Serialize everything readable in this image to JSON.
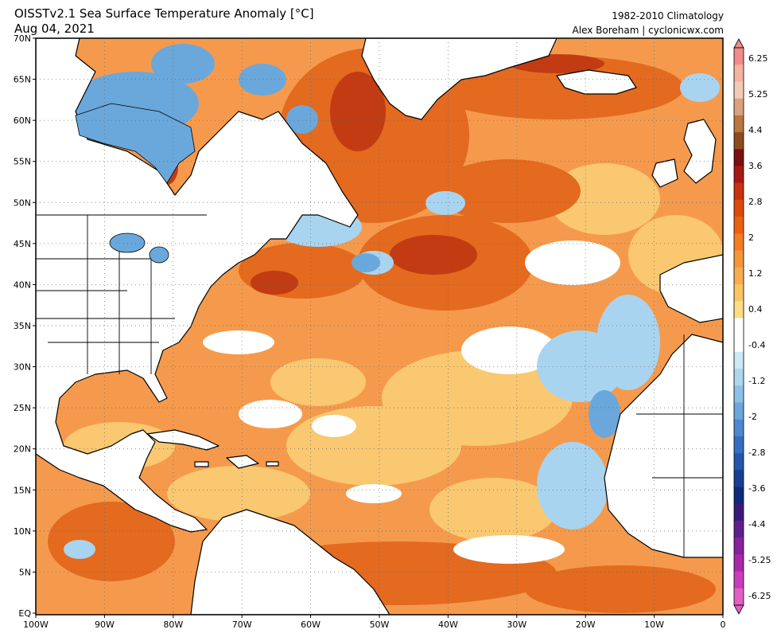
{
  "header": {
    "title": "OISSTv2.1 Sea Surface Temperature Anomaly [°C]",
    "date": "Aug 04, 2021",
    "climatology": "1982-2010 Climatology",
    "credit": "Alex Boreham | cyclonicwx.com"
  },
  "axes": {
    "lat_labels": [
      "70N",
      "65N",
      "60N",
      "55N",
      "50N",
      "45N",
      "40N",
      "35N",
      "30N",
      "25N",
      "20N",
      "15N",
      "10N",
      "5N",
      "EQ"
    ],
    "lon_labels": [
      "100W",
      "90W",
      "80W",
      "70W",
      "60W",
      "50W",
      "40W",
      "30W",
      "20W",
      "10W",
      "0"
    ]
  },
  "colorbar": {
    "tick_labels": [
      "6.25",
      "5.25",
      "4.4",
      "3.6",
      "2.8",
      "2",
      "1.2",
      "0.4",
      "-0.4",
      "-1.2",
      "-2",
      "-2.8",
      "-3.6",
      "-4.4",
      "-5.25",
      "-6.25"
    ],
    "colors": [
      "#f08c8c",
      "#f4b3a3",
      "#f2cbb7",
      "#d9a27e",
      "#b9763f",
      "#8c4b1e",
      "#7a1010",
      "#a51a12",
      "#c8300e",
      "#dc4a0c",
      "#ea6110",
      "#f27d24",
      "#f5953c",
      "#f7ac52",
      "#f9c466",
      "#fcdc85",
      "#ffffff",
      "#ffffff",
      "#cfe8f6",
      "#aed6ef",
      "#8dc0e6",
      "#6ba6dc",
      "#4d89cf",
      "#356ec0",
      "#2456ad",
      "#173e94",
      "#10297a",
      "#3a1a78",
      "#5f1f8a",
      "#86229a",
      "#a829a8",
      "#c73dba",
      "#e060c6"
    ]
  },
  "map_colors": {
    "land": "#ffffff",
    "ocean_base": "#f59a4c",
    "warm_light": "#f9c870",
    "warm_strong": "#e36a1f",
    "warm_hot": "#c23b12",
    "neutral": "#ffffff",
    "cool_light": "#a8d4f0",
    "cool": "#6aa8dc"
  }
}
